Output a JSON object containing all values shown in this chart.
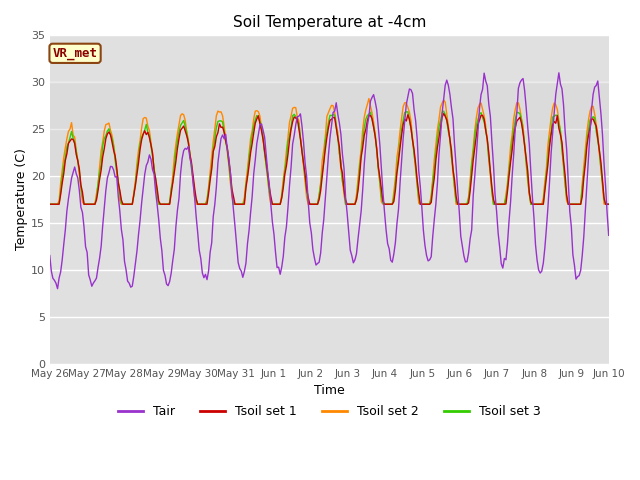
{
  "title": "Soil Temperature at -4cm",
  "xlabel": "Time",
  "ylabel": "Temperature (C)",
  "ylim": [
    0,
    35
  ],
  "yticks": [
    0,
    5,
    10,
    15,
    20,
    25,
    30,
    35
  ],
  "background_color": "#ffffff",
  "plot_bg_color": "#e0e0e0",
  "annotation_text": "VR_met",
  "annotation_bg": "#ffffcc",
  "annotation_border": "#8B4513",
  "x_labels": [
    "May 26",
    "May 27",
    "May 28",
    "May 29",
    "May 30",
    "May 31",
    "Jun 1",
    "Jun 2",
    "Jun 3",
    "Jun 4",
    "Jun 5",
    "Jun 6",
    "Jun 7",
    "Jun 8",
    "Jun 9",
    "Jun 10"
  ],
  "colors": {
    "Tair": "#9932CC",
    "Tsoil_set1": "#cc0000",
    "Tsoil_set2": "#ff8800",
    "Tsoil_set3": "#33cc00"
  },
  "legend_labels": [
    "Tair",
    "Tsoil set 1",
    "Tsoil set 2",
    "Tsoil set 3"
  ]
}
